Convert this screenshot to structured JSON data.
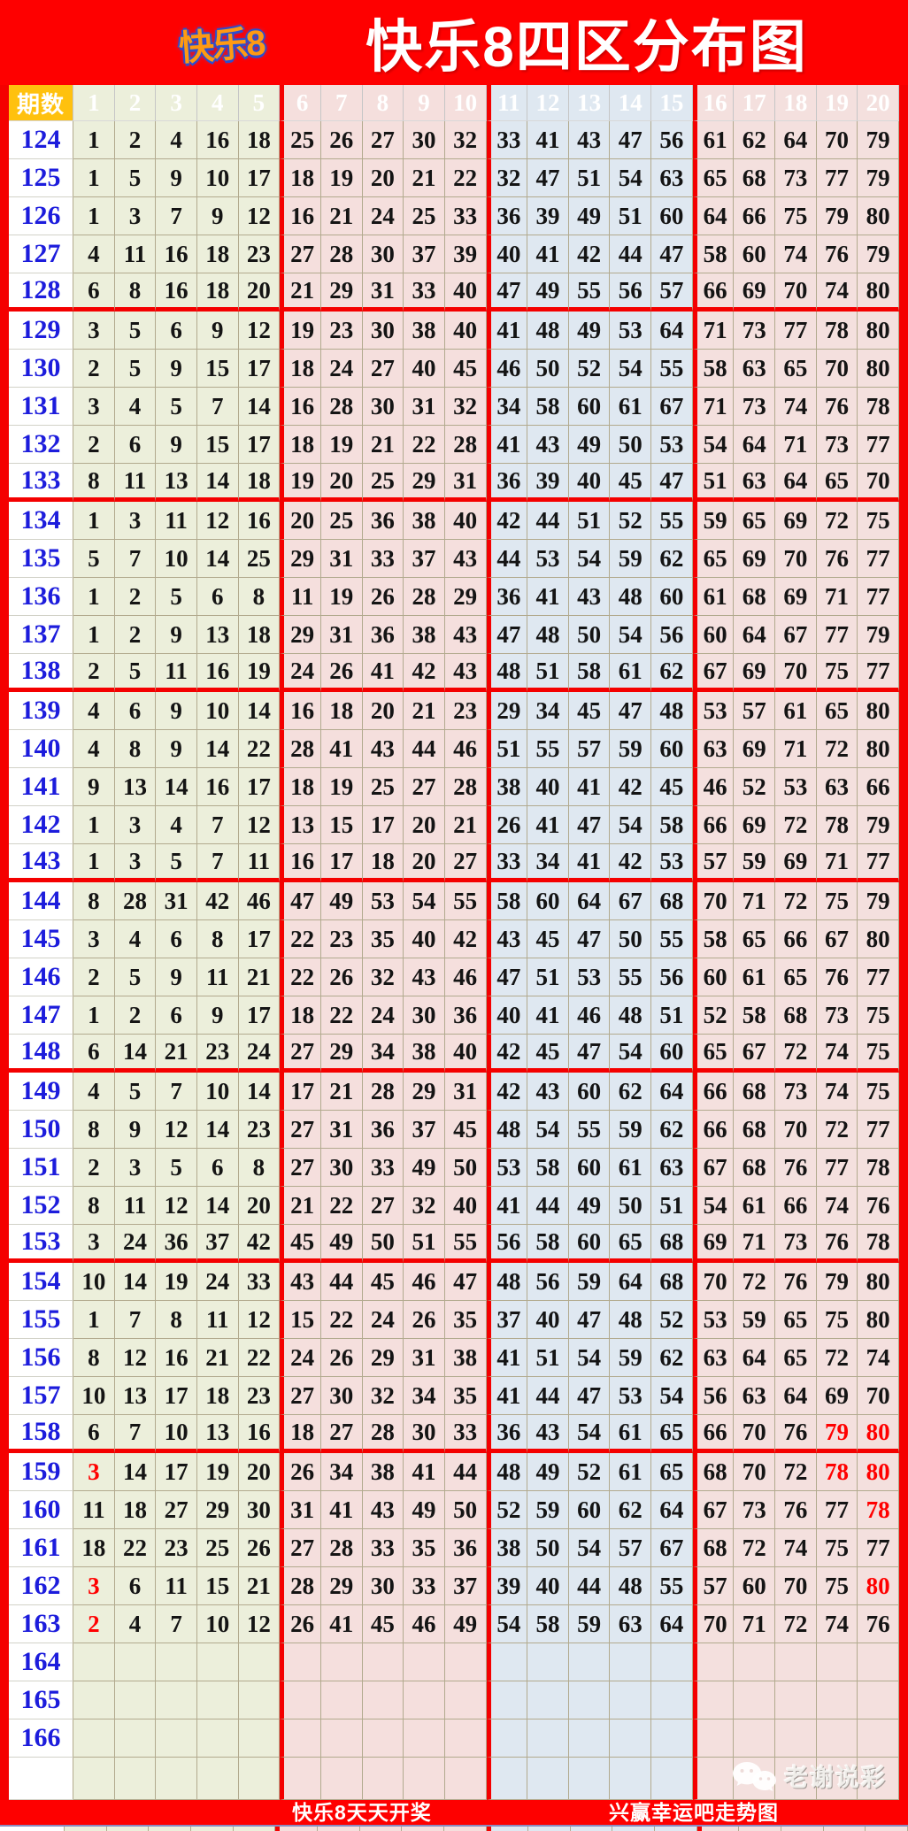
{
  "title": "快乐8四区分布图",
  "logo": {
    "text": "快乐8"
  },
  "footer": {
    "left_text": "快乐8天天开奖",
    "right_text": "兴赢幸运吧走势图"
  },
  "watermark": {
    "text": "老谢说彩",
    "icon": "wechat-icon"
  },
  "colors": {
    "banner_red": "#fe0000",
    "header_orange": "#ffc10e",
    "zone1_bg": "#ecefdb",
    "zone2_bg": "#f5dfdd",
    "zone3_bg": "#dfe8f1",
    "zone4_bg": "#f4e0de",
    "grid_border": "#b2aa8e",
    "zone_divider_red": "#f40000",
    "period_blue": "#1c1cdc",
    "number_black": "#141414",
    "highlight_red": "#ff0000"
  },
  "chart_data": {
    "type": "table",
    "title": "快乐8四区分布图",
    "period_header": "期数",
    "columns": [
      "1",
      "2",
      "3",
      "4",
      "5",
      "6",
      "7",
      "8",
      "9",
      "10",
      "11",
      "12",
      "13",
      "14",
      "15",
      "16",
      "17",
      "18",
      "19",
      "20"
    ],
    "zones": [
      {
        "name": "zone1",
        "columns": "1-5"
      },
      {
        "name": "zone2",
        "columns": "6-10"
      },
      {
        "name": "zone3",
        "columns": "11-15"
      },
      {
        "name": "zone4",
        "columns": "16-20"
      }
    ],
    "rows": [
      {
        "period": "124",
        "nums": [
          1,
          2,
          4,
          16,
          18,
          25,
          26,
          27,
          30,
          32,
          33,
          41,
          43,
          47,
          56,
          61,
          62,
          64,
          70,
          79
        ],
        "red": []
      },
      {
        "period": "125",
        "nums": [
          1,
          5,
          9,
          10,
          17,
          18,
          19,
          20,
          21,
          22,
          32,
          47,
          51,
          54,
          63,
          65,
          68,
          73,
          77,
          79
        ],
        "red": []
      },
      {
        "period": "126",
        "nums": [
          1,
          3,
          7,
          9,
          12,
          16,
          21,
          24,
          25,
          33,
          36,
          39,
          49,
          51,
          60,
          64,
          66,
          75,
          79,
          80
        ],
        "red": []
      },
      {
        "period": "127",
        "nums": [
          4,
          11,
          16,
          18,
          23,
          27,
          28,
          30,
          37,
          39,
          40,
          41,
          42,
          44,
          47,
          58,
          60,
          74,
          76,
          79
        ],
        "red": []
      },
      {
        "period": "128",
        "nums": [
          6,
          8,
          16,
          18,
          20,
          21,
          29,
          31,
          33,
          40,
          47,
          49,
          55,
          56,
          57,
          66,
          69,
          70,
          74,
          80
        ],
        "red": []
      },
      {
        "period": "129",
        "nums": [
          3,
          5,
          6,
          9,
          12,
          19,
          23,
          30,
          38,
          40,
          41,
          48,
          49,
          53,
          64,
          71,
          73,
          77,
          78,
          80
        ],
        "red": []
      },
      {
        "period": "130",
        "nums": [
          2,
          5,
          9,
          15,
          17,
          18,
          24,
          27,
          40,
          45,
          46,
          50,
          52,
          54,
          55,
          58,
          63,
          65,
          70,
          80
        ],
        "red": []
      },
      {
        "period": "131",
        "nums": [
          3,
          4,
          5,
          7,
          14,
          16,
          28,
          30,
          31,
          32,
          34,
          58,
          60,
          61,
          67,
          71,
          73,
          74,
          76,
          78
        ],
        "red": []
      },
      {
        "period": "132",
        "nums": [
          2,
          6,
          9,
          15,
          17,
          18,
          19,
          21,
          22,
          28,
          41,
          43,
          49,
          50,
          53,
          54,
          64,
          71,
          73,
          77
        ],
        "red": []
      },
      {
        "period": "133",
        "nums": [
          8,
          11,
          13,
          14,
          18,
          19,
          20,
          25,
          29,
          31,
          36,
          39,
          40,
          45,
          47,
          51,
          63,
          64,
          65,
          70
        ],
        "red": []
      },
      {
        "period": "134",
        "nums": [
          1,
          3,
          11,
          12,
          16,
          20,
          25,
          36,
          38,
          40,
          42,
          44,
          51,
          52,
          55,
          59,
          65,
          69,
          72,
          75
        ],
        "red": []
      },
      {
        "period": "135",
        "nums": [
          5,
          7,
          10,
          14,
          25,
          29,
          31,
          33,
          37,
          43,
          44,
          53,
          54,
          59,
          62,
          65,
          69,
          70,
          76,
          77
        ],
        "red": []
      },
      {
        "period": "136",
        "nums": [
          1,
          2,
          5,
          6,
          8,
          11,
          19,
          26,
          28,
          29,
          36,
          41,
          43,
          48,
          60,
          61,
          68,
          69,
          71,
          77
        ],
        "red": []
      },
      {
        "period": "137",
        "nums": [
          1,
          2,
          9,
          13,
          18,
          29,
          31,
          36,
          38,
          43,
          47,
          48,
          50,
          54,
          56,
          60,
          64,
          67,
          77,
          79
        ],
        "red": []
      },
      {
        "period": "138",
        "nums": [
          2,
          5,
          11,
          16,
          19,
          24,
          26,
          41,
          42,
          43,
          48,
          51,
          58,
          61,
          62,
          67,
          69,
          70,
          75,
          77
        ],
        "red": []
      },
      {
        "period": "139",
        "nums": [
          4,
          6,
          9,
          10,
          14,
          16,
          18,
          20,
          21,
          23,
          29,
          34,
          45,
          47,
          48,
          53,
          57,
          61,
          65,
          80
        ],
        "red": []
      },
      {
        "period": "140",
        "nums": [
          4,
          8,
          9,
          14,
          22,
          28,
          41,
          43,
          44,
          46,
          51,
          55,
          57,
          59,
          60,
          63,
          69,
          71,
          72,
          80
        ],
        "red": []
      },
      {
        "period": "141",
        "nums": [
          9,
          13,
          14,
          16,
          17,
          18,
          19,
          25,
          27,
          28,
          38,
          40,
          41,
          42,
          45,
          46,
          52,
          53,
          63,
          66
        ],
        "red": []
      },
      {
        "period": "142",
        "nums": [
          1,
          3,
          4,
          7,
          12,
          13,
          15,
          17,
          20,
          21,
          26,
          41,
          47,
          54,
          58,
          66,
          69,
          72,
          78,
          79
        ],
        "red": []
      },
      {
        "period": "143",
        "nums": [
          1,
          3,
          5,
          7,
          11,
          16,
          17,
          18,
          20,
          27,
          33,
          34,
          41,
          42,
          53,
          57,
          59,
          69,
          71,
          77
        ],
        "red": []
      },
      {
        "period": "144",
        "nums": [
          8,
          28,
          31,
          42,
          46,
          47,
          49,
          53,
          54,
          55,
          58,
          60,
          64,
          67,
          68,
          70,
          71,
          72,
          75,
          79
        ],
        "red": []
      },
      {
        "period": "145",
        "nums": [
          3,
          4,
          6,
          8,
          17,
          22,
          23,
          35,
          40,
          42,
          43,
          45,
          47,
          50,
          55,
          58,
          65,
          66,
          67,
          80
        ],
        "red": []
      },
      {
        "period": "146",
        "nums": [
          2,
          5,
          9,
          11,
          21,
          22,
          26,
          32,
          43,
          46,
          47,
          51,
          53,
          55,
          56,
          60,
          61,
          65,
          76,
          77
        ],
        "red": []
      },
      {
        "period": "147",
        "nums": [
          1,
          2,
          6,
          9,
          17,
          18,
          22,
          24,
          30,
          36,
          40,
          41,
          46,
          48,
          51,
          52,
          58,
          68,
          73,
          75
        ],
        "red": []
      },
      {
        "period": "148",
        "nums": [
          6,
          14,
          21,
          23,
          24,
          27,
          29,
          34,
          38,
          40,
          42,
          45,
          47,
          54,
          60,
          65,
          67,
          72,
          74,
          75
        ],
        "red": []
      },
      {
        "period": "149",
        "nums": [
          4,
          5,
          7,
          10,
          14,
          17,
          21,
          28,
          29,
          31,
          42,
          43,
          60,
          62,
          64,
          66,
          68,
          73,
          74,
          75
        ],
        "red": []
      },
      {
        "period": "150",
        "nums": [
          8,
          9,
          12,
          14,
          23,
          27,
          31,
          36,
          37,
          45,
          48,
          54,
          55,
          59,
          62,
          66,
          68,
          70,
          72,
          77
        ],
        "red": []
      },
      {
        "period": "151",
        "nums": [
          2,
          3,
          5,
          6,
          8,
          27,
          30,
          33,
          49,
          50,
          53,
          58,
          60,
          61,
          63,
          67,
          68,
          76,
          77,
          78
        ],
        "red": []
      },
      {
        "period": "152",
        "nums": [
          8,
          11,
          12,
          14,
          20,
          21,
          22,
          27,
          32,
          40,
          41,
          44,
          49,
          50,
          51,
          54,
          61,
          66,
          74,
          76
        ],
        "red": []
      },
      {
        "period": "153",
        "nums": [
          3,
          24,
          36,
          37,
          42,
          45,
          49,
          50,
          51,
          55,
          56,
          58,
          60,
          65,
          68,
          69,
          71,
          73,
          76,
          78
        ],
        "red": []
      },
      {
        "period": "154",
        "nums": [
          10,
          14,
          19,
          24,
          33,
          43,
          44,
          45,
          46,
          47,
          48,
          56,
          59,
          64,
          68,
          70,
          72,
          76,
          79,
          80
        ],
        "red": []
      },
      {
        "period": "155",
        "nums": [
          1,
          7,
          8,
          11,
          12,
          15,
          22,
          24,
          26,
          35,
          37,
          40,
          47,
          48,
          52,
          53,
          59,
          65,
          75,
          80
        ],
        "red": []
      },
      {
        "period": "156",
        "nums": [
          8,
          12,
          16,
          21,
          22,
          24,
          26,
          29,
          31,
          38,
          41,
          51,
          54,
          59,
          62,
          63,
          64,
          65,
          72,
          74
        ],
        "red": []
      },
      {
        "period": "157",
        "nums": [
          10,
          13,
          17,
          18,
          23,
          27,
          30,
          32,
          34,
          35,
          41,
          44,
          47,
          53,
          54,
          56,
          63,
          64,
          69,
          70
        ],
        "red": []
      },
      {
        "period": "158",
        "nums": [
          6,
          7,
          10,
          13,
          16,
          18,
          27,
          28,
          30,
          33,
          36,
          43,
          54,
          61,
          65,
          66,
          70,
          76,
          79,
          80
        ],
        "red": [
          18,
          19
        ]
      },
      {
        "period": "159",
        "nums": [
          3,
          14,
          17,
          19,
          20,
          26,
          34,
          38,
          41,
          44,
          48,
          49,
          52,
          61,
          65,
          68,
          70,
          72,
          78,
          80
        ],
        "red": [
          0,
          18,
          19
        ]
      },
      {
        "period": "160",
        "nums": [
          11,
          18,
          27,
          29,
          30,
          31,
          41,
          43,
          49,
          50,
          52,
          59,
          60,
          62,
          64,
          67,
          73,
          76,
          77,
          78
        ],
        "red": [
          19
        ]
      },
      {
        "period": "161",
        "nums": [
          18,
          22,
          23,
          25,
          26,
          27,
          28,
          33,
          35,
          36,
          38,
          50,
          54,
          57,
          67,
          68,
          72,
          74,
          75,
          77
        ],
        "red": []
      },
      {
        "period": "162",
        "nums": [
          3,
          6,
          11,
          15,
          21,
          28,
          29,
          30,
          33,
          37,
          39,
          40,
          44,
          48,
          55,
          57,
          60,
          70,
          75,
          80
        ],
        "red": [
          0,
          19
        ]
      },
      {
        "period": "163",
        "nums": [
          2,
          4,
          7,
          10,
          12,
          26,
          41,
          45,
          46,
          49,
          54,
          58,
          59,
          63,
          64,
          70,
          71,
          72,
          74,
          76
        ],
        "red": [
          0
        ]
      },
      {
        "period": "164",
        "nums": [],
        "red": []
      },
      {
        "period": "165",
        "nums": [],
        "red": []
      },
      {
        "period": "166",
        "nums": [],
        "red": []
      },
      {
        "period": "",
        "nums": [],
        "red": []
      }
    ],
    "group_divider_after_periods": [
      "128",
      "133",
      "138",
      "143",
      "148",
      "153",
      "158"
    ]
  }
}
